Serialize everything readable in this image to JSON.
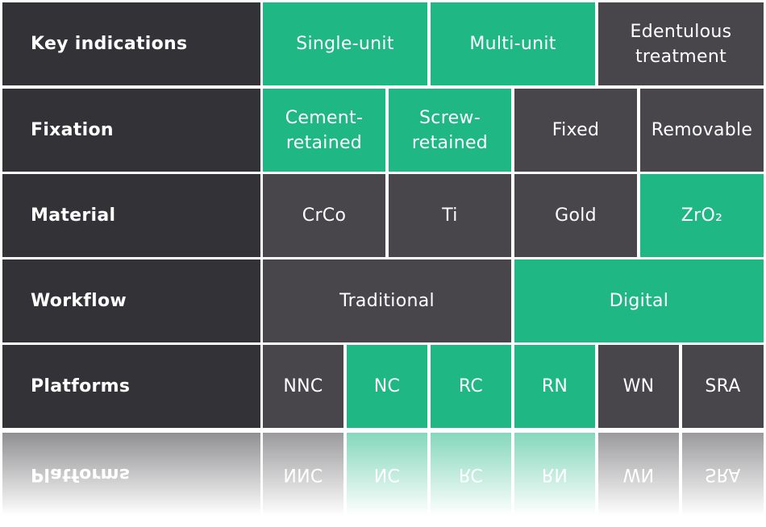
{
  "colors": {
    "label": "#333236",
    "inactive": "#48464a",
    "active": "#1fb783"
  },
  "rows": [
    {
      "label": "Key indications",
      "cells": [
        {
          "text": "Single-unit",
          "active": true
        },
        {
          "text": "Multi-unit",
          "active": true
        },
        {
          "text": "Edentulous treatment",
          "active": false
        }
      ]
    },
    {
      "label": "Fixation",
      "cells": [
        {
          "text": "Cement-retained",
          "active": true
        },
        {
          "text": "Screw-retained",
          "active": true
        },
        {
          "text": "Fixed",
          "active": false
        },
        {
          "text": "Removable",
          "active": false
        }
      ]
    },
    {
      "label": "Material",
      "cells": [
        {
          "text": "CrCo",
          "active": false
        },
        {
          "text": "Ti",
          "active": false
        },
        {
          "text": "Gold",
          "active": false
        },
        {
          "text": "ZrO₂",
          "active": true
        }
      ]
    },
    {
      "label": "Workflow",
      "cells": [
        {
          "text": "Traditional",
          "active": false
        },
        {
          "text": "Digital",
          "active": true
        }
      ]
    },
    {
      "label": "Platforms",
      "cells": [
        {
          "text": "NNC",
          "active": false
        },
        {
          "text": "NC",
          "active": true
        },
        {
          "text": "RC",
          "active": true
        },
        {
          "text": "RN",
          "active": true
        },
        {
          "text": "WN",
          "active": false
        },
        {
          "text": "SRA",
          "active": false
        }
      ]
    }
  ]
}
